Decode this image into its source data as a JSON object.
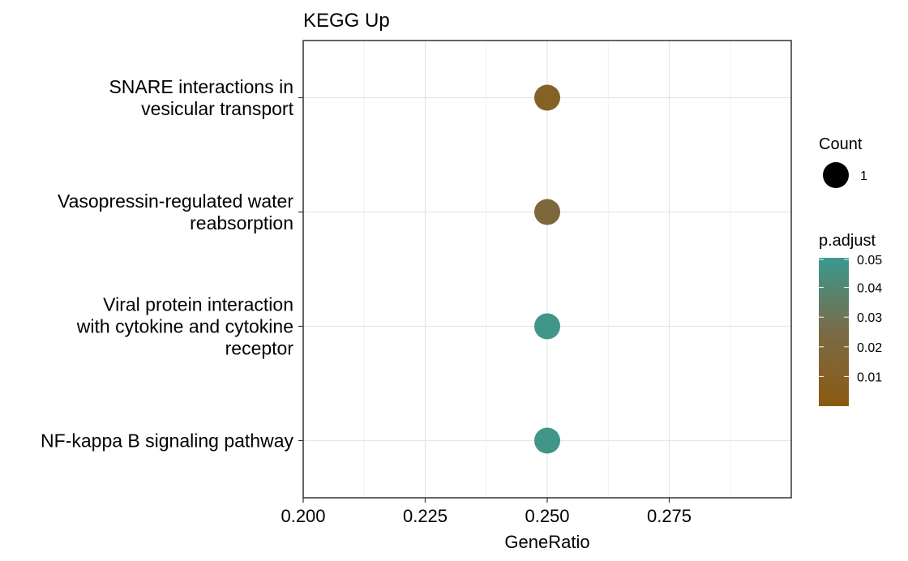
{
  "chart_data": {
    "type": "scatter",
    "title": "KEGG Up",
    "xlabel": "GeneRatio",
    "ylabel": "",
    "xlim": [
      0.2,
      0.3
    ],
    "x_ticks": [
      "0.200",
      "0.225",
      "0.250",
      "0.275"
    ],
    "x_tick_values": [
      0.2,
      0.225,
      0.25,
      0.275
    ],
    "categories": [
      [
        "SNARE interactions in",
        "vesicular transport"
      ],
      [
        "Vasopressin-regulated water",
        "reabsorption"
      ],
      [
        "Viral protein interaction",
        "with cytokine and cytokine",
        "receptor"
      ],
      [
        "NF-kappa B signaling pathway"
      ]
    ],
    "points": [
      {
        "x": 0.25,
        "p_adjust": 0.01,
        "count": 1
      },
      {
        "x": 0.25,
        "p_adjust": 0.02,
        "count": 1
      },
      {
        "x": 0.25,
        "p_adjust": 0.048,
        "count": 1
      },
      {
        "x": 0.25,
        "p_adjust": 0.048,
        "count": 1
      }
    ],
    "grid": true,
    "legend": {
      "placement": "right",
      "size_title": "Count",
      "size_entries": [
        {
          "value": "1"
        }
      ],
      "color_title": "p.adjust",
      "color_ticks": [
        "0.05",
        "0.04",
        "0.03",
        "0.02",
        "0.01"
      ],
      "color_tick_values": [
        0.05,
        0.04,
        0.03,
        0.02,
        0.01
      ],
      "color_range": [
        0.0,
        0.05
      ],
      "color_low": "#8b5a12",
      "color_mid": "#7a6b47",
      "color_high": "#3a9a8f"
    }
  }
}
